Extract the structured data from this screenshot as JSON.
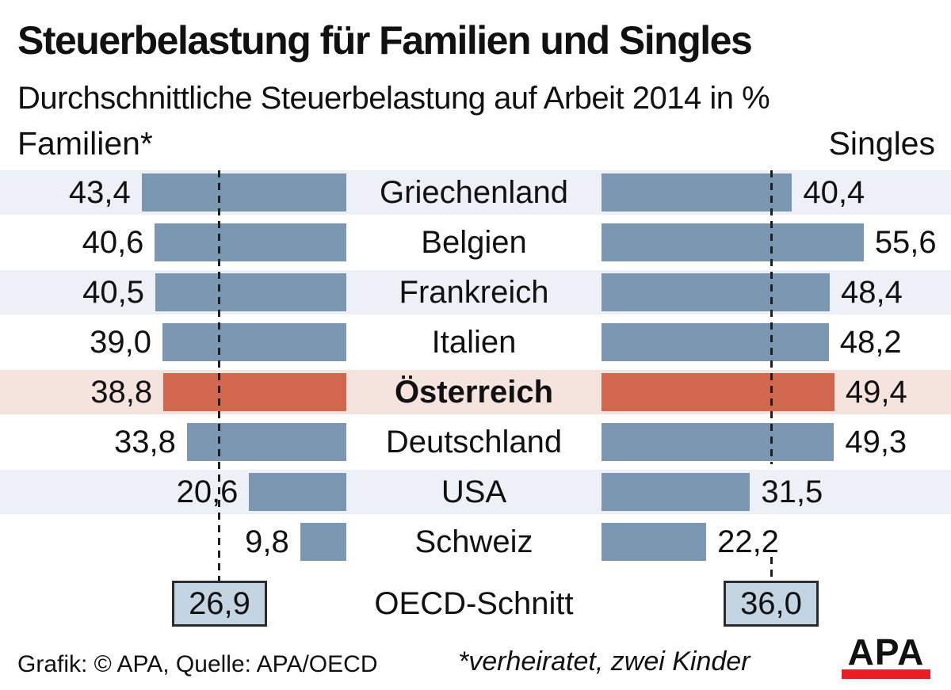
{
  "header": {
    "title": "Steuerbelastung für Familien und Singles",
    "subtitle": "Durchschnittliche Steuerbelastung auf Arbeit 2014 in %",
    "left_column_label": "Familien*",
    "right_column_label": "Singles"
  },
  "chart_data": {
    "type": "bar",
    "orientation": "horizontal-diverging",
    "unit": "%",
    "title": "Steuerbelastung für Familien und Singles",
    "subtitle": "Durchschnittliche Steuerbelastung auf Arbeit 2014 in %",
    "series_names": [
      "Familien",
      "Singles"
    ],
    "rows": [
      {
        "country": "Griechenland",
        "familien": 43.4,
        "familien_label": "43,4",
        "singles": 40.4,
        "singles_label": "40,4",
        "highlight": false
      },
      {
        "country": "Belgien",
        "familien": 40.6,
        "familien_label": "40,6",
        "singles": 55.6,
        "singles_label": "55,6",
        "highlight": false
      },
      {
        "country": "Frankreich",
        "familien": 40.5,
        "familien_label": "40,5",
        "singles": 48.4,
        "singles_label": "48,4",
        "highlight": false
      },
      {
        "country": "Italien",
        "familien": 39.0,
        "familien_label": "39,0",
        "singles": 48.2,
        "singles_label": "48,2",
        "highlight": false
      },
      {
        "country": "Österreich",
        "familien": 38.8,
        "familien_label": "38,8",
        "singles": 49.4,
        "singles_label": "49,4",
        "highlight": true
      },
      {
        "country": "Deutschland",
        "familien": 33.8,
        "familien_label": "33,8",
        "singles": 49.3,
        "singles_label": "49,3",
        "highlight": false
      },
      {
        "country": "USA",
        "familien": 20.6,
        "familien_label": "20,6",
        "singles": 31.5,
        "singles_label": "31,5",
        "highlight": false
      },
      {
        "country": "Schweiz",
        "familien": 9.8,
        "familien_label": "9,8",
        "singles": 22.2,
        "singles_label": "22,2",
        "highlight": false
      }
    ],
    "oecd": {
      "label": "OECD-Schnitt",
      "familien": 26.9,
      "familien_label": "26,9",
      "singles": 36.0,
      "singles_label": "36,0"
    },
    "colors": {
      "bar": "#7b97b1",
      "highlight_bar": "#d2674f",
      "row_light": "#edf0f6",
      "row_highlight": "#f5e3de",
      "box_fill": "#c3d4e2",
      "logo_red": "#ed1c24"
    },
    "legend_position": "none",
    "grid": "off"
  },
  "footer": {
    "source": "Grafik: © APA, Quelle: APA/OECD",
    "footnote": "*verheiratet, zwei Kinder",
    "logo_text": "APA"
  }
}
